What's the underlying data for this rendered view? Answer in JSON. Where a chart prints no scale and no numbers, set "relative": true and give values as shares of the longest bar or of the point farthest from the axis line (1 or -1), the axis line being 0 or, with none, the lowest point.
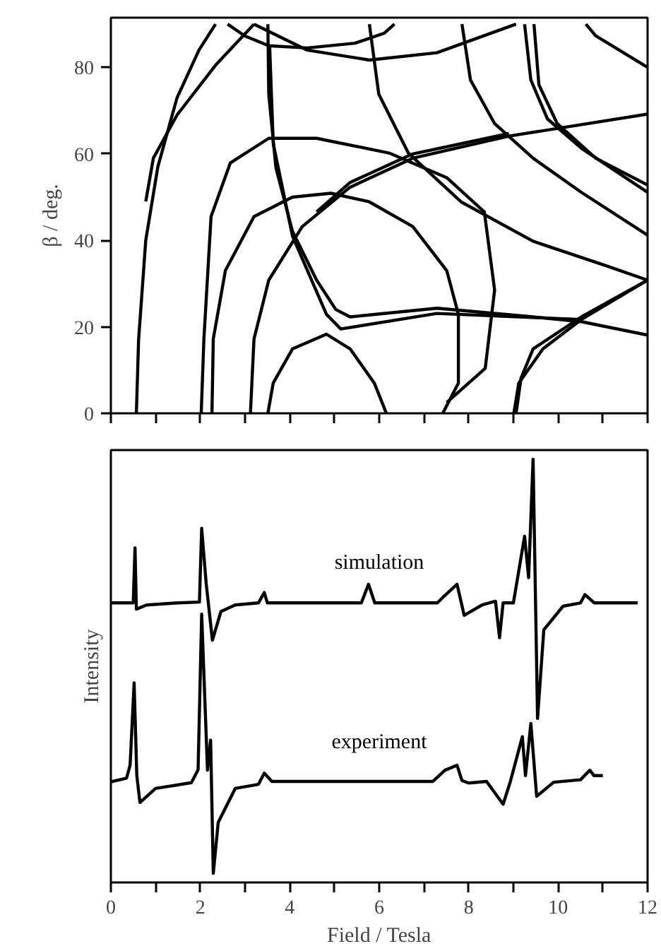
{
  "chart_data": [
    {
      "type": "line",
      "ylabel": "β / deg.",
      "xlim": [
        0,
        12
      ],
      "ylim": [
        0,
        91.5
      ],
      "xticks": [
        0,
        {
          "value": 1,
          "label": null
        },
        2,
        {
          "value": 3,
          "label": null
        },
        4,
        {
          "value": 5,
          "label": null
        },
        6,
        {
          "value": 7,
          "label": null
        },
        8,
        {
          "value": 9,
          "label": null
        },
        10,
        {
          "value": 11,
          "label": null
        },
        12
      ],
      "yticks": [
        0,
        20,
        40,
        60,
        80
      ],
      "tick_labels": "y",
      "legend": false,
      "series": [
        {
          "color": "#000000",
          "x": [
            0.57,
            0.62,
            0.78,
            1.05,
            1.48,
            1.97,
            2.34
          ],
          "values": [
            0,
            17,
            40,
            57,
            73,
            84,
            90
          ]
        },
        {
          "color": "#000000",
          "x": [
            0.78,
            0.95,
            1.48,
            2.34,
            3.2
          ],
          "values": [
            49,
            59,
            69,
            80.5,
            90
          ]
        },
        {
          "color": "#000000",
          "x": [
            2.61,
            2.99,
            3.53,
            4.39,
            5.46,
            6.11,
            6.34
          ],
          "values": [
            90,
            87.3,
            85,
            84.5,
            85.6,
            87.9,
            90
          ]
        },
        {
          "color": "#000000",
          "x": [
            3.2,
            4.39,
            5.78,
            7.29,
            9.06
          ],
          "values": [
            90,
            84,
            81.7,
            83.4,
            90
          ]
        },
        {
          "color": "#000000",
          "x": [
            3.51,
            3.53,
            3.69,
            4.06,
            4.6,
            5.03,
            5.35,
            7.29,
            9.44,
            10.52,
            12
          ],
          "values": [
            90,
            73.8,
            56.8,
            42.1,
            30.8,
            24,
            22.3,
            24.3,
            22.3,
            21.2,
            18.1
          ]
        },
        {
          "color": "#000000",
          "x": [
            3.55,
            3.63,
            4.06,
            4.82,
            5.14,
            7.29,
            10.52
          ],
          "values": [
            85,
            62.4,
            41,
            22.9,
            19.5,
            23.1,
            21.7
          ]
        },
        {
          "color": "#000000",
          "x": [
            2.02,
            2.08,
            2.24,
            2.67,
            3.53,
            4.6,
            6.22,
            7.51,
            8.35,
            8.58,
            8.37,
            7.51
          ],
          "values": [
            0,
            17.2,
            45.5,
            57.9,
            63.6,
            63.6,
            60.2,
            54.5,
            46.6,
            28.5,
            10.4,
            2.5
          ]
        },
        {
          "color": "#000000",
          "x": [
            2.26,
            2.29,
            2.56,
            3.2,
            4.06,
            4.92,
            5.78,
            6.75,
            7.51,
            7.77,
            7.77,
            7.42
          ],
          "values": [
            0,
            17.2,
            33,
            45.5,
            50,
            50.9,
            48.9,
            43.2,
            33,
            22.9,
            7,
            0
          ]
        },
        {
          "color": "#000000",
          "x": [
            3.12,
            3.2,
            3.53,
            4.28,
            5.35,
            6.75,
            8.9,
            12
          ],
          "values": [
            0,
            17.2,
            30.8,
            43.2,
            52.3,
            59,
            64.1,
            69.2
          ]
        },
        {
          "color": "#000000",
          "x": [
            4.6,
            5.35,
            6.75,
            8.9
          ],
          "values": [
            46.6,
            53.4,
            60,
            64.7
          ]
        },
        {
          "color": "#000000",
          "x": [
            3.51,
            3.63,
            4.06,
            4.82,
            5.35,
            5.89,
            6.16
          ],
          "values": [
            0,
            7,
            14.9,
            18.3,
            14.9,
            7,
            0
          ]
        },
        {
          "color": "#000000",
          "x": [
            5.78,
            5.99,
            6.65,
            7.83,
            9.44,
            11.05,
            12
          ],
          "values": [
            90,
            73.8,
            60.2,
            48.9,
            39.8,
            34.2,
            30.8
          ]
        },
        {
          "color": "#000000",
          "x": [
            9.01,
            9.12,
            9.66,
            10.52,
            12
          ],
          "values": [
            0,
            7,
            14.9,
            21.7,
            30.8
          ]
        },
        {
          "color": "#000000",
          "x": [
            12,
            10.52,
            9.44,
            9.17,
            9.06
          ],
          "values": [
            30.8,
            22.3,
            14.9,
            8.1,
            0
          ]
        },
        {
          "color": "#000000",
          "x": [
            7.85,
            8.04,
            8.58,
            9.44,
            10.52,
            12
          ],
          "values": [
            90,
            77.1,
            67,
            59,
            51.1,
            41.2
          ]
        },
        {
          "color": "#000000",
          "x": [
            9.25,
            9.39,
            9.76,
            10.52,
            12
          ],
          "values": [
            90,
            77.1,
            68.1,
            61.3,
            51.1
          ]
        },
        {
          "color": "#000000",
          "x": [
            9.46,
            9.57,
            9.98,
            10.84,
            12
          ],
          "values": [
            90,
            76,
            67,
            59,
            52.8
          ]
        },
        {
          "color": "#000000",
          "x": [
            10.62,
            10.84,
            12
          ],
          "values": [
            90,
            87.3,
            80
          ]
        }
      ]
    },
    {
      "type": "line",
      "xlabel": "Field / Tesla",
      "ylabel": "Intensity",
      "relative": true,
      "xlim": [
        0,
        12
      ],
      "xticks": [
        0,
        {
          "value": 1,
          "label": null
        },
        2,
        {
          "value": 3,
          "label": null
        },
        4,
        {
          "value": 5,
          "label": null
        },
        6,
        {
          "value": 7,
          "label": null
        },
        8,
        {
          "value": 9,
          "label": null
        },
        10,
        {
          "value": 11,
          "label": null
        },
        12
      ],
      "tick_labels": "x",
      "legend": false,
      "series": [
        {
          "name": "simulation",
          "color": "#000000",
          "x": [
            0,
            0.5,
            0.54,
            0.57,
            0.8,
            1.5,
            1.98,
            2.03,
            2.13,
            2.27,
            2.46,
            2.78,
            3.3,
            3.43,
            3.5,
            5.6,
            5.76,
            5.9,
            7.3,
            7.42,
            7.74,
            7.9,
            8.3,
            8.6,
            8.69,
            8.77,
            9.0,
            9.25,
            9.34,
            9.44,
            9.54,
            9.68,
            10.11,
            10.5,
            10.6,
            10.81,
            11.78
          ],
          "values": [
            0.653,
            0.653,
            0.786,
            0.638,
            0.648,
            0.653,
            0.655,
            0.833,
            0.701,
            0.563,
            0.632,
            0.648,
            0.653,
            0.678,
            0.653,
            0.653,
            0.698,
            0.653,
            0.653,
            0.666,
            0.698,
            0.623,
            0.648,
            0.657,
            0.569,
            0.653,
            0.653,
            0.814,
            0.714,
            1,
            0.374,
            0.588,
            0.645,
            0.653,
            0.673,
            0.653,
            0.653
          ]
        },
        {
          "name": "experiment",
          "color": "#000000",
          "x": [
            0,
            0.35,
            0.43,
            0.52,
            0.58,
            0.65,
            1.0,
            1.8,
            1.95,
            2.03,
            2.16,
            2.23,
            2.29,
            2.4,
            2.78,
            3.3,
            3.43,
            3.6,
            7.2,
            7.47,
            7.74,
            7.85,
            8.0,
            8.4,
            8.77,
            8.93,
            9.2,
            9.27,
            9.39,
            9.52,
            9.9,
            10.5,
            10.71,
            10.8,
            11.0
          ],
          "values": [
            0.221,
            0.23,
            0.261,
            0.46,
            0.236,
            0.171,
            0.205,
            0.219,
            0.25,
            0.626,
            0.249,
            0.322,
            0,
            0.123,
            0.205,
            0.215,
            0.242,
            0.222,
            0.222,
            0.249,
            0.261,
            0.224,
            0.218,
            0.222,
            0.167,
            0.221,
            0.33,
            0.236,
            0.362,
            0.186,
            0.22,
            0.226,
            0.249,
            0.236,
            0.236
          ]
        }
      ]
    }
  ]
}
